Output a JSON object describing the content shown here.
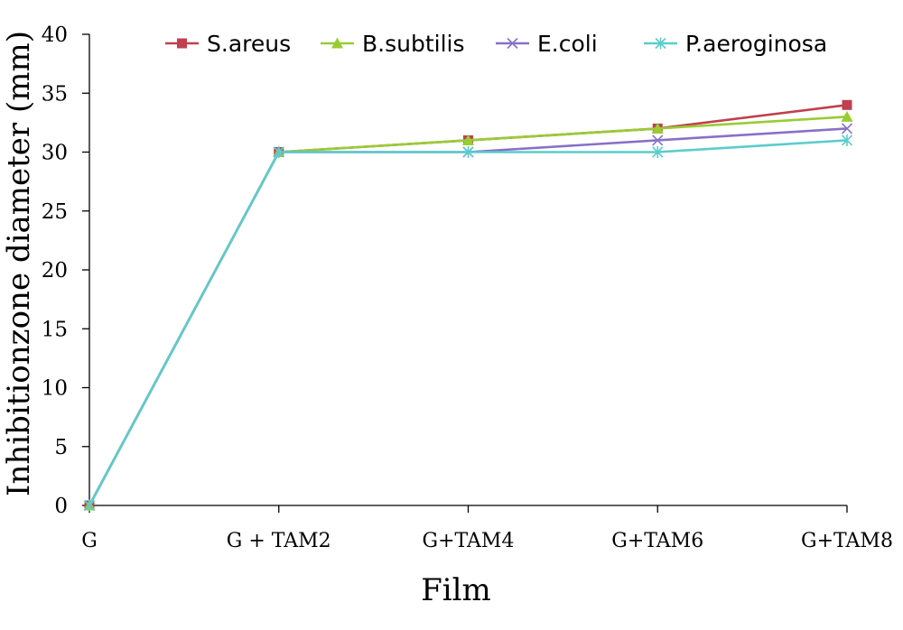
{
  "chart_data": {
    "type": "line",
    "title": "",
    "xlabel": "Film",
    "ylabel": "Inhibitionzone diameter (mm)",
    "categories": [
      "G",
      "G + TAM2",
      "G+TAM4",
      "G+TAM6",
      "G+TAM8"
    ],
    "ylim": [
      0,
      40
    ],
    "yticks": [
      0,
      5,
      10,
      15,
      20,
      25,
      30,
      35,
      40
    ],
    "grid": false,
    "legend_position": "top",
    "series": [
      {
        "name": "S.areus",
        "color": "#c0404f",
        "marker": "square",
        "values": [
          0,
          30,
          31,
          32,
          34
        ]
      },
      {
        "name": "B.subtilis",
        "color": "#99cc33",
        "marker": "triangle",
        "values": [
          0,
          30,
          31,
          32,
          33
        ]
      },
      {
        "name": "E.coli",
        "color": "#8870c8",
        "marker": "x",
        "values": [
          0,
          30,
          30,
          31,
          32
        ]
      },
      {
        "name": "P.aeroginosa",
        "color": "#5ccccc",
        "marker": "asterisk",
        "values": [
          0,
          30,
          30,
          30,
          31
        ]
      }
    ]
  }
}
